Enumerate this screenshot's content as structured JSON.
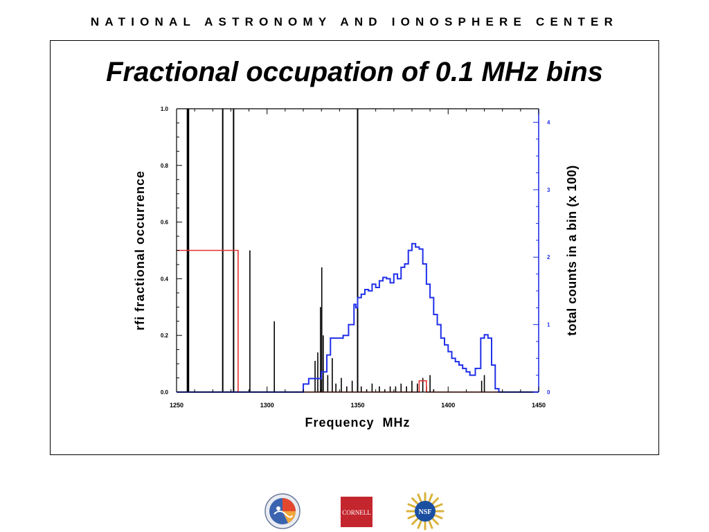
{
  "header": {
    "organization": "NATIONAL ASTRONOMY AND IONOSPHERE CENTER"
  },
  "slide": {
    "title": "Fractional occupation of 0.1 MHz bins"
  },
  "logos": {
    "cornell_text": "CORNELL",
    "nsf_text": "NSF"
  },
  "colors": {
    "rfi_series": "#000000",
    "threshold_series": "#e53030",
    "counts_series": "#1f2ee8",
    "right_axis": "#1f2ee8",
    "cornell_red": "#c4262e",
    "nsf_blue": "#1a4fa0",
    "nsf_gold": "#d9b23a"
  },
  "chart_data": {
    "type": "line",
    "xlabel": "Frequency  MHz",
    "ylabel": "rfi fractional occurrence",
    "y2label": "total counts in a bin (x 100)",
    "xlim": [
      1250,
      1450
    ],
    "ylim": [
      0,
      1.0
    ],
    "y2lim": [
      0,
      4.2
    ],
    "x_ticks": [
      "1250",
      "1300",
      "1350",
      "1400",
      "1450"
    ],
    "y_ticks": [
      "0.0",
      "0.2",
      "0.4",
      "0.6",
      "0.8",
      "1.0"
    ],
    "y2_ticks": [
      "0",
      "1",
      "2",
      "3",
      "4"
    ],
    "grid": false,
    "series": [
      {
        "role": "rfi_fractional_occurrence",
        "axis": "left",
        "style": "spikes",
        "x": [
          1256,
          1256.6,
          1275.5,
          1281.5,
          1290.5,
          1304,
          1326.5,
          1328,
          1329.5,
          1330.2,
          1331,
          1333.5,
          1336,
          1338,
          1341,
          1344,
          1347,
          1350,
          1352,
          1355,
          1358,
          1362,
          1365,
          1368,
          1371,
          1374,
          1377,
          1380,
          1383,
          1386,
          1388,
          1390,
          1392,
          1418.5,
          1420
        ],
        "values": [
          1.0,
          1.0,
          1.0,
          1.0,
          0.5,
          0.25,
          0.11,
          0.14,
          0.3,
          0.44,
          0.2,
          0.06,
          0.12,
          0.03,
          0.05,
          0.02,
          0.04,
          1.0,
          0.02,
          0.01,
          0.03,
          0.02,
          0.01,
          0.02,
          0.02,
          0.03,
          0.02,
          0.04,
          0.03,
          0.05,
          0.02,
          0.06,
          0.01,
          0.04,
          0.06
        ]
      },
      {
        "role": "red_step",
        "axis": "left",
        "style": "line",
        "x": [
          1250,
          1284,
          1284,
          1384,
          1384,
          1388,
          1388,
          1450
        ],
        "values": [
          0.5,
          0.5,
          0.0,
          0.0,
          0.04,
          0.04,
          0.0,
          0.0
        ]
      },
      {
        "role": "total_counts",
        "axis": "right",
        "style": "step",
        "x": [
          1250,
          1320,
          1323,
          1330,
          1333,
          1335,
          1342,
          1345,
          1348,
          1349,
          1350,
          1352,
          1354,
          1356,
          1358,
          1360,
          1362,
          1364,
          1366,
          1368,
          1370,
          1372,
          1374,
          1376,
          1378,
          1380,
          1382,
          1384,
          1386,
          1388,
          1390,
          1392,
          1394,
          1396,
          1398,
          1400,
          1402,
          1404,
          1406,
          1408,
          1410,
          1412,
          1415,
          1418,
          1420,
          1422,
          1424,
          1426,
          1428,
          1450
        ],
        "values": [
          0,
          0.12,
          0.2,
          0.3,
          0.55,
          0.8,
          0.84,
          1.0,
          1.3,
          1.25,
          1.4,
          1.45,
          1.52,
          1.5,
          1.6,
          1.55,
          1.65,
          1.7,
          1.68,
          1.62,
          1.75,
          1.68,
          1.85,
          1.9,
          2.1,
          2.2,
          2.15,
          2.12,
          1.9,
          1.6,
          1.4,
          1.15,
          1.0,
          0.8,
          0.7,
          0.6,
          0.5,
          0.45,
          0.4,
          0.35,
          0.3,
          0.25,
          0.35,
          0.8,
          0.85,
          0.8,
          0.4,
          0.05,
          0,
          0
        ]
      }
    ]
  }
}
